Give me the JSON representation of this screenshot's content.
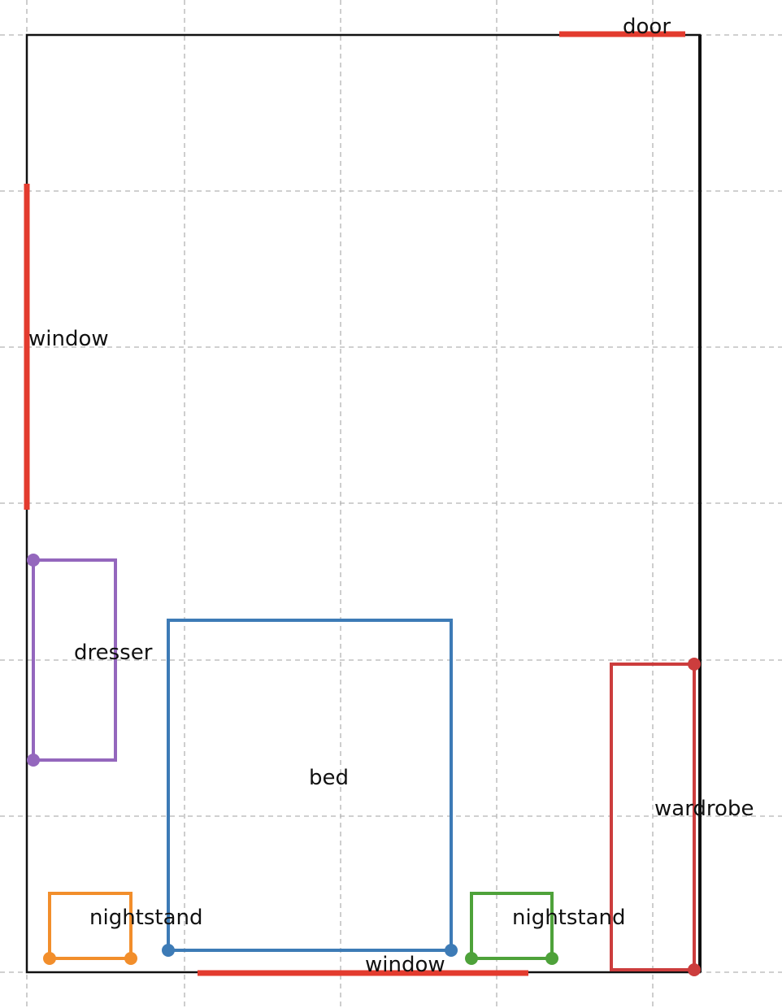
{
  "colors": {
    "grid": "#b4b4b4",
    "wall": "#111111",
    "opening": "#e33b2e",
    "bed": "#3d7bb6",
    "dresser": "#9467bd",
    "nightstand_left": "#f28e2b",
    "nightstand_right": "#4ea23a",
    "wardrobe": "#cc3d3d",
    "text": "#111111"
  },
  "openings": [
    {
      "id": "door-top",
      "label": "door"
    },
    {
      "id": "window-left",
      "label": "window"
    },
    {
      "id": "window-bottom",
      "label": "window"
    }
  ],
  "furniture": [
    {
      "id": "dresser",
      "label": "dresser"
    },
    {
      "id": "bed",
      "label": "bed"
    },
    {
      "id": "nightstand-left",
      "label": "nightstand"
    },
    {
      "id": "nightstand-right",
      "label": "nightstand"
    },
    {
      "id": "wardrobe",
      "label": "wardrobe"
    }
  ]
}
